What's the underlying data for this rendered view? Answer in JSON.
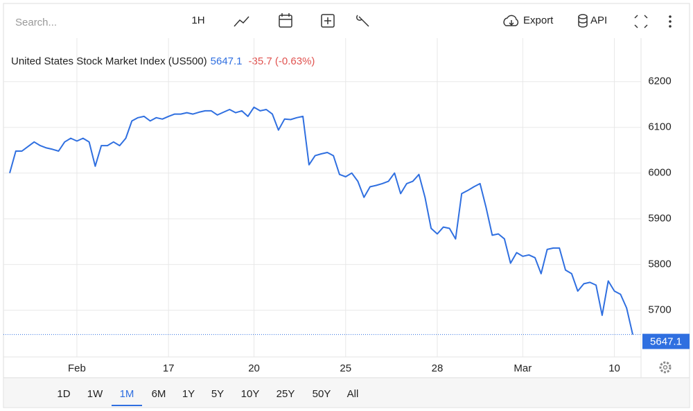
{
  "toolbar": {
    "search_placeholder": "Search...",
    "interval": "1H",
    "export": "Export",
    "api": "API"
  },
  "chart_data": {
    "type": "line",
    "title": "United States Stock Market Index (US500)",
    "last_price": 5647.1,
    "change_label": "-35.7 (-0.63%)",
    "color": "#2f6fe0",
    "values": [
      6000,
      6048,
      6048,
      6058,
      6068,
      6060,
      6055,
      6052,
      6048,
      6068,
      6076,
      6070,
      6076,
      6068,
      6015,
      6060,
      6060,
      6068,
      6060,
      6076,
      6114,
      6121,
      6124,
      6114,
      6121,
      6118,
      6124,
      6129,
      6129,
      6132,
      6129,
      6133,
      6136,
      6136,
      6127,
      6133,
      6139,
      6132,
      6136,
      6124,
      6144,
      6136,
      6139,
      6129,
      6094,
      6118,
      6117,
      6121,
      6124,
      6018,
      6038,
      6042,
      6045,
      6038,
      5997,
      5992,
      6000,
      5982,
      5947,
      5970,
      5973,
      5977,
      5982,
      6000,
      5955,
      5977,
      5982,
      5997,
      5947,
      5879,
      5867,
      5882,
      5879,
      5856,
      5955,
      5962,
      5970,
      5977,
      5924,
      5864,
      5867,
      5856,
      5803,
      5826,
      5818,
      5821,
      5815,
      5780,
      5833,
      5836,
      5836,
      5788,
      5780,
      5742,
      5758,
      5761,
      5755,
      5689,
      5764,
      5742,
      5735,
      5705,
      5647.1
    ],
    "xlim": [
      0,
      102
    ],
    "xticks": [
      {
        "value": 11,
        "label": "Feb"
      },
      {
        "value": 26,
        "label": "17"
      },
      {
        "value": 40,
        "label": "20"
      },
      {
        "value": 55,
        "label": "25"
      },
      {
        "value": 70,
        "label": "28"
      },
      {
        "value": 84,
        "label": "Mar"
      },
      {
        "value": 99,
        "label": "10"
      }
    ],
    "ylim": [
      5598,
      6295
    ],
    "yticks": [
      5700,
      5800,
      5900,
      6000,
      6100,
      6200
    ],
    "grid": true
  },
  "ranges": [
    "1D",
    "1W",
    "1M",
    "6M",
    "1Y",
    "5Y",
    "10Y",
    "25Y",
    "50Y",
    "All"
  ],
  "selected_range": 2
}
